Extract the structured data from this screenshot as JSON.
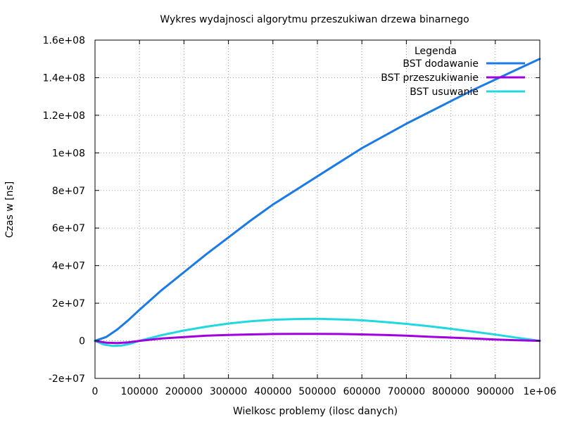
{
  "chart_data": {
    "type": "line",
    "title": "Wykres wydajnosci algorytmu przeszukiwan drzewa binarnego",
    "xlabel": "Wielkosc problemy (ilosc danych)",
    "ylabel": "Czas w [ns]",
    "xlim": [
      0,
      1000000
    ],
    "ylim": [
      -20000000,
      160000000
    ],
    "grid": true,
    "legend_title": "Legenda",
    "legend_position": "top-right",
    "x_ticks": [
      {
        "value": 0,
        "label": "0"
      },
      {
        "value": 100000,
        "label": "100000"
      },
      {
        "value": 200000,
        "label": "200000"
      },
      {
        "value": 300000,
        "label": "300000"
      },
      {
        "value": 400000,
        "label": "400000"
      },
      {
        "value": 500000,
        "label": "500000"
      },
      {
        "value": 600000,
        "label": "600000"
      },
      {
        "value": 700000,
        "label": "700000"
      },
      {
        "value": 800000,
        "label": "800000"
      },
      {
        "value": 900000,
        "label": "900000"
      },
      {
        "value": 1000000,
        "label": "1e+06"
      }
    ],
    "y_ticks": [
      {
        "value": -20000000,
        "label": "-2e+07"
      },
      {
        "value": 0,
        "label": "0"
      },
      {
        "value": 20000000,
        "label": "2e+07"
      },
      {
        "value": 40000000,
        "label": "4e+07"
      },
      {
        "value": 60000000,
        "label": "6e+07"
      },
      {
        "value": 80000000,
        "label": "8e+07"
      },
      {
        "value": 100000000,
        "label": "1e+08"
      },
      {
        "value": 120000000,
        "label": "1.2e+08"
      },
      {
        "value": 140000000,
        "label": "1.4e+08"
      },
      {
        "value": 160000000,
        "label": "1.6e+08"
      }
    ],
    "series": [
      {
        "name": "BST dodawanie",
        "color": "#1a7ae6",
        "x": [
          0,
          25000,
          50000,
          75000,
          100000,
          150000,
          200000,
          250000,
          300000,
          350000,
          400000,
          450000,
          500000,
          550000,
          600000,
          650000,
          700000,
          750000,
          800000,
          850000,
          900000,
          950000,
          1000000
        ],
        "y": [
          0,
          2000000,
          6000000,
          11000000,
          16500000,
          27000000,
          36500000,
          46000000,
          55000000,
          64000000,
          72500000,
          80000000,
          87500000,
          95000000,
          102500000,
          109000000,
          115500000,
          121500000,
          127500000,
          133500000,
          139000000,
          144500000,
          150000000
        ]
      },
      {
        "name": "BST przeszukiwanie",
        "color": "#a000e0",
        "x": [
          0,
          25000,
          50000,
          75000,
          100000,
          150000,
          200000,
          250000,
          300000,
          350000,
          400000,
          450000,
          500000,
          550000,
          600000,
          650000,
          700000,
          750000,
          800000,
          850000,
          900000,
          950000,
          1000000
        ],
        "y": [
          0,
          -1000000,
          -1200000,
          -800000,
          0,
          1200000,
          2000000,
          2700000,
          3100000,
          3400000,
          3600000,
          3700000,
          3700000,
          3600000,
          3400000,
          3100000,
          2700000,
          2200000,
          1700000,
          1200000,
          700000,
          300000,
          0
        ]
      },
      {
        "name": "BST usuwanie",
        "color": "#20d8e0",
        "x": [
          0,
          20000,
          40000,
          60000,
          80000,
          100000,
          150000,
          200000,
          250000,
          300000,
          350000,
          400000,
          450000,
          500000,
          550000,
          600000,
          650000,
          700000,
          750000,
          800000,
          850000,
          900000,
          950000,
          1000000
        ],
        "y": [
          0,
          -2000000,
          -2700000,
          -2500000,
          -1500000,
          0,
          3000000,
          5500000,
          7500000,
          9200000,
          10400000,
          11200000,
          11600000,
          11700000,
          11400000,
          10900000,
          10000000,
          9000000,
          7800000,
          6400000,
          4900000,
          3300000,
          1600000,
          0
        ]
      }
    ]
  }
}
